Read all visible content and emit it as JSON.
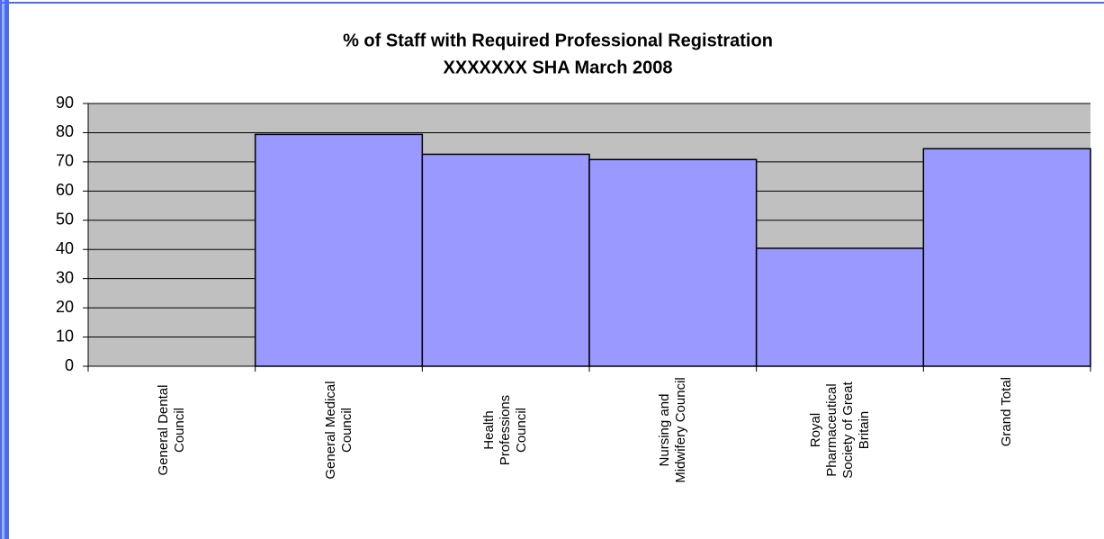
{
  "chart_data": {
    "type": "bar",
    "title": "% of Staff with Required Professional Registration",
    "subtitle": "XXXXXXX SHA March 2008",
    "categories": [
      "General Dental Council",
      "General Medical Council",
      "Health Professions Council",
      "Nursing and Midwifery Council",
      "Royal Pharmaceutical Society of Great Britain",
      "Grand Total"
    ],
    "values": [
      0,
      79.4,
      72.6,
      70.8,
      40.4,
      74.5
    ],
    "color": "#9999ff",
    "plot_background": "#c0c0c0",
    "ylim": [
      0,
      90
    ],
    "yticks": [
      0,
      10,
      20,
      30,
      40,
      50,
      60,
      70,
      80,
      90
    ],
    "grid": true
  }
}
